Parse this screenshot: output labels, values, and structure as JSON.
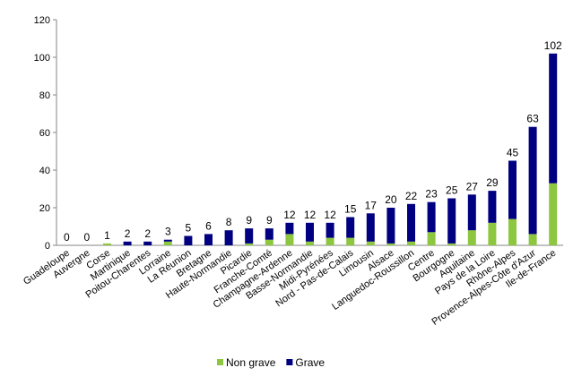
{
  "chart_data": {
    "type": "bar",
    "stacked": true,
    "categories": [
      "Guadeloupe",
      "Auvergne",
      "Corse",
      "Martinique",
      "Poitou-Charentes",
      "Lorraine",
      "La Réunion",
      "Bretagne",
      "Haute-Normandie",
      "Picardie",
      "Franche-Comté",
      "Champagne-Ardenne",
      "Basse-Normandie",
      "Midi-Pyrénées",
      "Nord - Pas-de-Calais",
      "Limousin",
      "Alsace",
      "Languedoc-Roussillon",
      "Centre",
      "Bourgogne",
      "Aquitaine",
      "Pays de la Loire",
      "Rhône-Alpes",
      "Provence-Alpes-Côte d'Azur",
      "Ile-de-France"
    ],
    "series": [
      {
        "name": "Non grave",
        "color": "#8dc63f",
        "values": [
          0,
          0,
          1,
          0,
          0,
          2,
          0,
          0,
          0,
          1,
          3,
          6,
          2,
          4,
          4,
          2,
          1,
          2,
          7,
          1,
          8,
          12,
          14,
          6,
          33
        ]
      },
      {
        "name": "Grave",
        "color": "#000080",
        "values": [
          0,
          0,
          0,
          2,
          2,
          1,
          5,
          6,
          8,
          8,
          6,
          6,
          10,
          8,
          11,
          15,
          19,
          20,
          16,
          24,
          19,
          17,
          31,
          57,
          69
        ]
      }
    ],
    "totals": [
      0,
      0,
      1,
      2,
      2,
      3,
      5,
      6,
      8,
      9,
      9,
      12,
      12,
      12,
      15,
      17,
      20,
      22,
      23,
      25,
      27,
      29,
      45,
      63,
      102
    ],
    "yticks": [
      "0",
      "20",
      "40",
      "60",
      "80",
      "100",
      "120"
    ],
    "ylim": [
      0,
      120
    ],
    "grid": false,
    "legend_position": "bottom"
  }
}
